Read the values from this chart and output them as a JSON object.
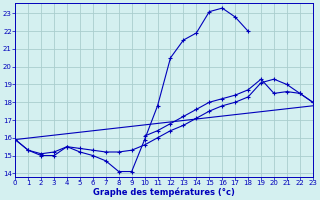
{
  "title": "Graphe des températures (°c)",
  "bg_color": "#d4f0f0",
  "grid_color": "#aacece",
  "line_color": "#0000bb",
  "xlim": [
    0,
    23
  ],
  "ylim": [
    13.8,
    23.6
  ],
  "xticks": [
    0,
    1,
    2,
    3,
    4,
    5,
    6,
    7,
    8,
    9,
    10,
    11,
    12,
    13,
    14,
    15,
    16,
    17,
    18,
    19,
    20,
    21,
    22,
    23
  ],
  "yticks": [
    14,
    15,
    16,
    17,
    18,
    19,
    20,
    21,
    22,
    23
  ],
  "series_with_markers": [
    {
      "x": [
        0,
        1,
        2,
        3,
        4,
        5,
        6,
        7,
        8,
        9,
        10,
        11,
        12,
        13,
        14,
        15,
        16,
        17,
        18,
        19,
        20,
        21,
        22,
        23
      ],
      "y": [
        15.9,
        15.3,
        15.0,
        15.0,
        15.5,
        15.2,
        15.0,
        14.7,
        14.1,
        14.1,
        15.9,
        17.8,
        20.5,
        21.5,
        21.9,
        23.1,
        23.3,
        22.8,
        22.0,
        null,
        null,
        null,
        null,
        null
      ]
    },
    {
      "x": [
        10,
        11,
        12,
        13,
        14,
        15,
        16,
        17,
        18,
        19,
        20,
        21,
        22,
        23
      ],
      "y": [
        16.1,
        16.4,
        16.8,
        17.2,
        17.6,
        18.0,
        18.2,
        18.4,
        18.7,
        19.3,
        18.5,
        18.6,
        18.5,
        18.0
      ]
    },
    {
      "x": [
        0,
        1,
        2,
        3,
        4,
        5,
        6,
        7,
        8,
        9,
        10,
        11,
        12,
        13,
        14,
        15,
        16,
        17,
        18,
        19,
        20,
        21,
        22,
        23
      ],
      "y": [
        15.9,
        15.3,
        15.1,
        15.2,
        15.5,
        15.4,
        15.3,
        15.2,
        15.2,
        15.3,
        15.6,
        16.0,
        16.4,
        16.7,
        17.1,
        17.5,
        17.8,
        18.0,
        18.3,
        19.1,
        19.3,
        19.0,
        18.5,
        18.0
      ]
    }
  ],
  "series_line_only": [
    {
      "x": [
        0,
        23
      ],
      "y": [
        15.9,
        17.8
      ]
    }
  ]
}
